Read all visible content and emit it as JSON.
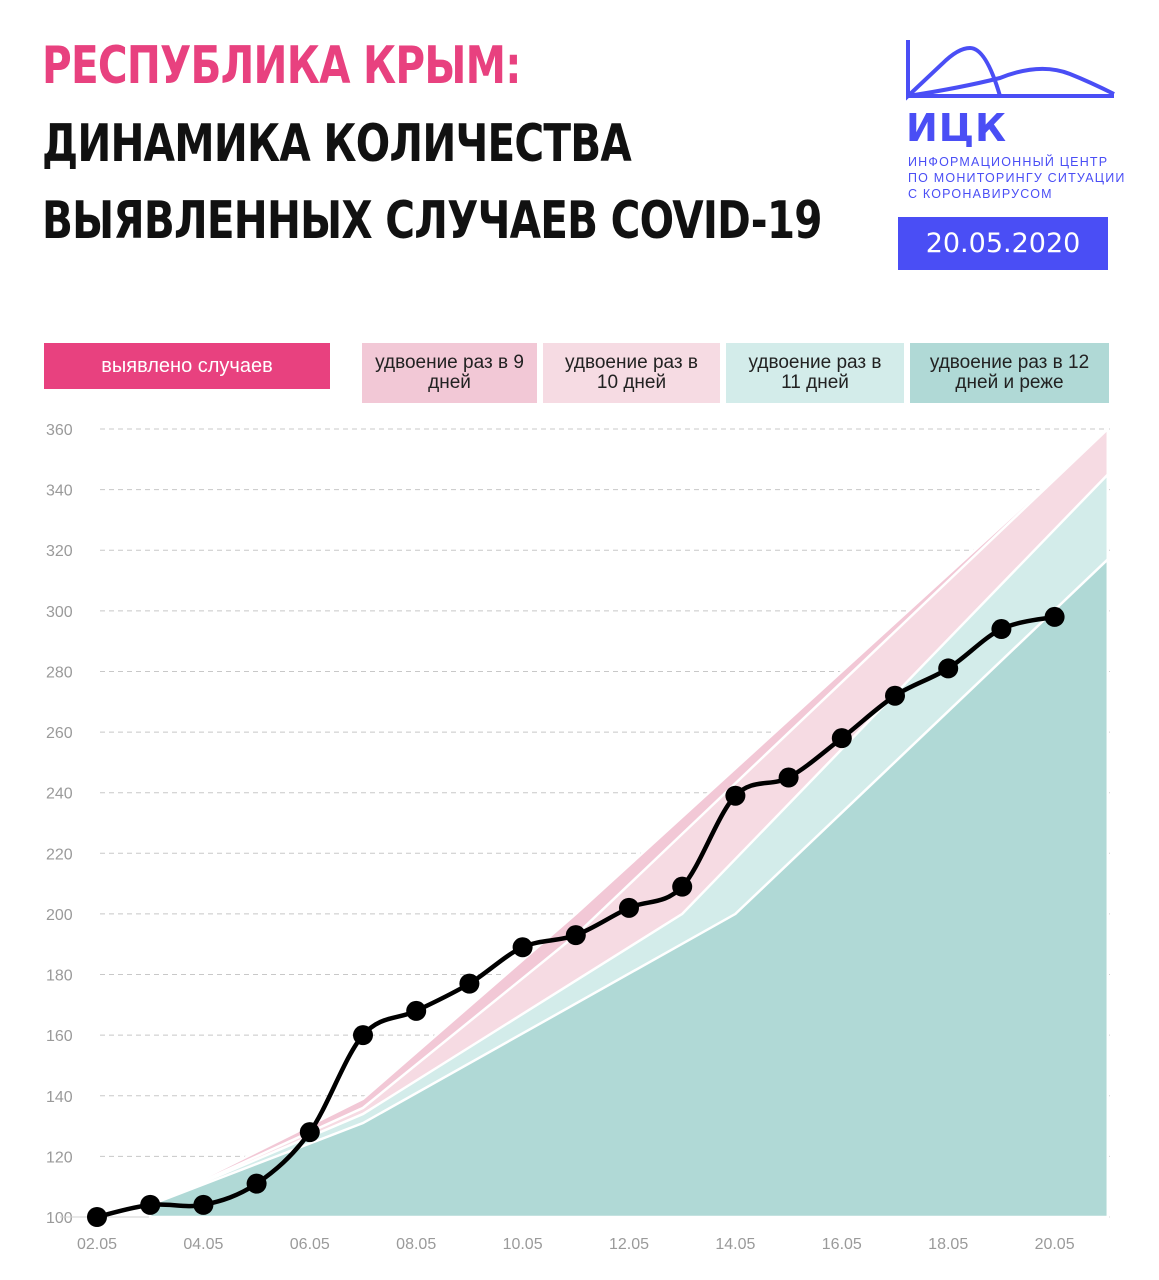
{
  "header": {
    "title_line1": "РЕСПУБЛИКА КРЫМ:",
    "title_line2": "ДИНАМИКА КОЛИЧЕСТВА",
    "title_line3": "ВЫЯВЛЕННЫХ СЛУЧАЕВ COVID-19"
  },
  "logo": {
    "name": "ИЦК",
    "subtitle_line1": "ИНФОРМАЦИОННЫЙ ЦЕНТР",
    "subtitle_line2": "ПО МОНИТОРИНГУ СИТУАЦИИ",
    "subtitle_line3": "С КОРОНАВИРУСОМ",
    "date": "20.05.2020"
  },
  "legend": {
    "cases": "выявлено случаев",
    "doubling_9": "удвоение раз в 9 дней",
    "doubling_10": "удвоение раз в 10 дней",
    "doubling_11": "удвоение раз в 11 дней",
    "doubling_12": "удвоение раз в 12 дней и реже"
  },
  "colors": {
    "title_accent": "#e8417f",
    "text_dark": "#111111",
    "brand_blue": "#4a4ef5",
    "cases_line": "#000000",
    "band_9": "#f2c8d6",
    "band_10": "#f6dbe3",
    "band_11": "#d3ecea",
    "band_12": "#b0d9d6",
    "grid": "#c8c8c8",
    "tick_text": "#9a9a9a"
  },
  "chart_data": {
    "type": "line",
    "x": [
      "02.05",
      "03.05",
      "04.05",
      "05.05",
      "06.05",
      "07.05",
      "08.05",
      "09.05",
      "10.05",
      "11.05",
      "12.05",
      "13.05",
      "14.05",
      "15.05",
      "16.05",
      "17.05",
      "18.05",
      "19.05",
      "20.05"
    ],
    "x_tick_labels": [
      "02.05",
      "04.05",
      "06.05",
      "08.05",
      "10.05",
      "12.05",
      "14.05",
      "16.05",
      "18.05",
      "20.05"
    ],
    "ylim": [
      100,
      360
    ],
    "y_ticks": [
      100,
      120,
      140,
      160,
      180,
      200,
      220,
      240,
      260,
      280,
      300,
      320,
      340,
      360
    ],
    "grid": "horizontal dashed",
    "legend_position": "top",
    "series": [
      {
        "name": "выявлено случаев",
        "values": [
          100,
          104,
          104,
          111,
          128,
          160,
          168,
          177,
          189,
          193,
          202,
          209,
          239,
          245,
          258,
          272,
          281,
          294,
          298
        ]
      }
    ],
    "doubling_bands": [
      {
        "name": "удвоение раз в 9 дней",
        "upper_points": [
          [
            "03.05",
            104
          ],
          [
            "07.05",
            139
          ],
          [
            "11.05",
            200
          ],
          [
            "21.05",
            360
          ]
        ]
      },
      {
        "name": "удвоение раз в 10 дней",
        "upper_points": [
          [
            "03.05",
            104
          ],
          [
            "07.05",
            136
          ],
          [
            "11.05",
            193
          ],
          [
            "21.05",
            360
          ]
        ]
      },
      {
        "name": "удвоение раз в 11 дней",
        "upper_points": [
          [
            "03.05",
            104
          ],
          [
            "07.05",
            134
          ],
          [
            "13.05",
            200
          ],
          [
            "21.05",
            345
          ]
        ]
      },
      {
        "name": "удвоение раз в 12 дней и реже",
        "upper_points": [
          [
            "03.05",
            104
          ],
          [
            "07.05",
            131
          ],
          [
            "14.05",
            200
          ],
          [
            "21.05",
            317
          ]
        ]
      }
    ]
  }
}
